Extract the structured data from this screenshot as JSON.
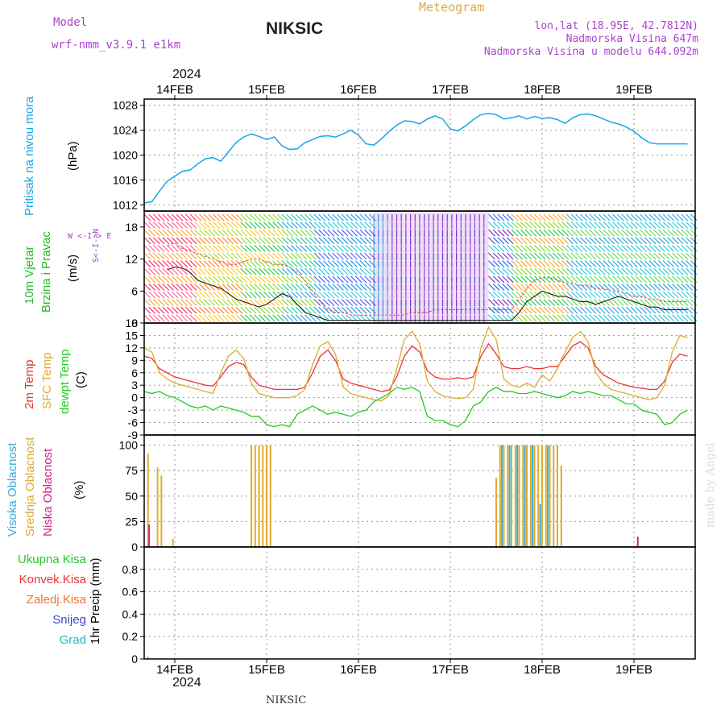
{
  "header": {
    "model_label": "Model",
    "model_name": "wrf-nmm_v3.9.1 e1km",
    "city": "NIKSIC",
    "meteogram_label": "Meteogram",
    "lonlat": "lon,lat (18.95E, 42.7812N)",
    "elevation": "Nadmorska Visina 647m",
    "model_elevation": "Nadmorska Visina u modelu 644.092m",
    "year": "2024",
    "days": [
      "14FEB",
      "15FEB",
      "16FEB",
      "17FEB",
      "18FEB",
      "19FEB"
    ],
    "footer_city": "NIKSIC",
    "credit": "made by Angel"
  },
  "colors": {
    "pressure": "#1aa5e6",
    "wind_label": "#22bb22",
    "temp2m": "#ee3333",
    "sfc": "#ddaa33",
    "dewpt": "#22cc22",
    "cloud_high": "#33aadd",
    "cloud_mid": "#ddaa33",
    "cloud_low": "#cc2288",
    "purple": "#aa44cc"
  },
  "panels": {
    "pressure": {
      "label1": "Pritisak na nivou mora",
      "unit": "(hPa)"
    },
    "wind": {
      "label1": "10m Vjetar",
      "label2": "Brzina i Pravac",
      "unit": "(m/s)",
      "compass": [
        "W",
        "<-",
        "I",
        "->",
        "E"
      ],
      "compass_vert": [
        "S",
        "<-",
        "I",
        "->",
        "N"
      ]
    },
    "temp": {
      "label1": "2m Temp",
      "label2": "SFC Temp",
      "label3": "dewpt Temp",
      "unit": "(C)"
    },
    "cloud": {
      "label1": "Visoka Oblacnost",
      "label2": "Srednja Oblacnost",
      "label3": "Niska Oblacnost",
      "unit": "(%)"
    },
    "precip": {
      "legend": [
        "Ukupna Kisa",
        "Konvek.Kisa",
        "Zaledj.Kisa",
        "Snijeg",
        "Grad"
      ],
      "unit": "1hr Precip (mm)"
    }
  },
  "chart_data": [
    {
      "type": "line",
      "name": "pressure",
      "ylim": [
        1011,
        1029
      ],
      "yticks": [
        "1012",
        "1016",
        "1020",
        "1024",
        "1028"
      ],
      "x": [
        0,
        2,
        4,
        6,
        8,
        10,
        12,
        14,
        16,
        18,
        20,
        22,
        24,
        26,
        28,
        30,
        32,
        34,
        36,
        38,
        40,
        42,
        44,
        46,
        48,
        50,
        52,
        54,
        56,
        58,
        60,
        62,
        64,
        66,
        68,
        70,
        72,
        74,
        76,
        78,
        80,
        82,
        84,
        86,
        88,
        90,
        92,
        94,
        96,
        98,
        100,
        102,
        104,
        106,
        108,
        110,
        112,
        114,
        116,
        118,
        120,
        122,
        124,
        126,
        128,
        130,
        132,
        134,
        136,
        138,
        140,
        142
      ],
      "series": [
        {
          "values": [
            1012.3,
            1012.5,
            1014.2,
            1015.8,
            1016.6,
            1017.4,
            1017.6,
            1018.6,
            1019.4,
            1019.6,
            1019.0,
            1020.5,
            1022.0,
            1022.9,
            1023.4,
            1023.0,
            1022.5,
            1022.9,
            1021.5,
            1020.9,
            1021.0,
            1022.0,
            1022.5,
            1023.0,
            1023.1,
            1022.9,
            1023.4,
            1024.0,
            1023.2,
            1021.8,
            1021.6,
            1022.6,
            1023.8,
            1024.8,
            1025.5,
            1025.4,
            1025.0,
            1025.8,
            1026.3,
            1025.8,
            1024.2,
            1023.9,
            1024.7,
            1025.7,
            1026.5,
            1026.7,
            1026.5,
            1025.8,
            1026.0,
            1026.3,
            1025.8,
            1026.2,
            1025.9,
            1026.0,
            1025.7,
            1025.1,
            1026.0,
            1026.5,
            1026.6,
            1026.3,
            1025.8,
            1025.3,
            1025.0,
            1024.5,
            1023.8,
            1022.8,
            1022.0,
            1021.8,
            1021.8,
            1021.8,
            1021.8,
            1021.8
          ]
        }
      ]
    },
    {
      "type": "line",
      "name": "wind",
      "ylim": [
        0,
        21
      ],
      "yticks": [
        "0",
        "6",
        "12",
        "18"
      ],
      "x": [
        6,
        8,
        10,
        12,
        14,
        16,
        18,
        20,
        22,
        24,
        26,
        28,
        30,
        32,
        34,
        36,
        38,
        40,
        42,
        44,
        46,
        48,
        50,
        52,
        54,
        56,
        58,
        60,
        62,
        64,
        66,
        68,
        70,
        72,
        74,
        76,
        78,
        80,
        82,
        84,
        86,
        88,
        90,
        92,
        94,
        96,
        98,
        100,
        102,
        104,
        106,
        108,
        110,
        112,
        114,
        116,
        118,
        120,
        122,
        124,
        126,
        128,
        130,
        132,
        134,
        136,
        138,
        140,
        142
      ],
      "series": [
        {
          "name": "wind_speed",
          "values": [
            10.0,
            10.5,
            10.3,
            9.5,
            8.0,
            7.5,
            7.0,
            6.5,
            5.5,
            4.5,
            4.0,
            3.5,
            3.0,
            3.5,
            4.5,
            5.5,
            5.0,
            3.5,
            2.0,
            1.5,
            1.0,
            0.5,
            0.5,
            0.5,
            0.5,
            0.5,
            0.5,
            0.5,
            0.5,
            0.5,
            0.5,
            0.5,
            0.5,
            0.5,
            0.5,
            0.5,
            0.5,
            0.5,
            0.5,
            0.5,
            0.5,
            0.5,
            0.5,
            0.5,
            0.5,
            0.5,
            2.0,
            4.0,
            5.0,
            6.0,
            5.5,
            5.0,
            5.0,
            4.5,
            4.0,
            4.0,
            3.5,
            4.0,
            4.5,
            5.0,
            4.5,
            4.0,
            3.5,
            3.0,
            3.0,
            2.5,
            2.5,
            2.5,
            2.5
          ]
        },
        {
          "name": "wind_gust",
          "values": [
            14.5,
            15.0,
            14.0,
            13.5,
            13.0,
            12.5,
            12.0,
            11.5,
            11.0,
            11.0,
            11.5,
            12.0,
            12.0,
            11.5,
            11.0,
            11.0,
            10.5,
            9.5,
            8.0,
            6.0,
            4.0,
            2.5,
            2.0,
            2.0,
            1.5,
            1.5,
            1.5,
            1.5,
            1.5,
            1.5,
            1.5,
            1.5,
            2.0,
            2.0,
            2.0,
            2.5,
            2.5,
            2.5,
            2.5,
            2.5,
            2.5,
            2.5,
            2.5,
            2.5,
            2.5,
            2.5,
            4.5,
            6.5,
            8.0,
            8.5,
            8.5,
            8.0,
            7.5,
            7.5,
            7.0,
            7.0,
            6.5,
            6.5,
            6.0,
            6.0,
            5.5,
            5.0,
            5.0,
            4.5,
            4.5,
            4.0,
            4.0,
            4.0,
            4.0
          ]
        }
      ]
    },
    {
      "type": "line",
      "name": "temperature",
      "ylim": [
        -9,
        18
      ],
      "yticks": [
        "-9",
        "-6",
        "-3",
        "0",
        "3",
        "6",
        "9",
        "12",
        "15",
        "18"
      ],
      "x": [
        0,
        2,
        4,
        6,
        8,
        10,
        12,
        14,
        16,
        18,
        20,
        22,
        24,
        26,
        28,
        30,
        32,
        34,
        36,
        38,
        40,
        42,
        44,
        46,
        48,
        50,
        52,
        54,
        56,
        58,
        60,
        62,
        64,
        66,
        68,
        70,
        72,
        74,
        76,
        78,
        80,
        82,
        84,
        86,
        88,
        90,
        92,
        94,
        96,
        98,
        100,
        102,
        104,
        106,
        108,
        110,
        112,
        114,
        116,
        118,
        120,
        122,
        124,
        126,
        128,
        130,
        132,
        134,
        136,
        138,
        140,
        142
      ],
      "series": [
        {
          "name": "2m_temp",
          "values": [
            10.0,
            9.5,
            7.0,
            6.0,
            5.0,
            4.5,
            4.0,
            3.5,
            3.0,
            2.8,
            5.0,
            7.5,
            8.5,
            8.0,
            5.0,
            3.0,
            2.5,
            2.0,
            2.0,
            2.0,
            2.0,
            2.5,
            6.0,
            10.0,
            11.5,
            9.0,
            4.5,
            3.5,
            3.0,
            2.5,
            2.0,
            1.5,
            1.8,
            5.0,
            10.0,
            12.5,
            11.0,
            6.5,
            5.0,
            4.5,
            4.5,
            4.8,
            4.5,
            5.0,
            10.0,
            13.0,
            10.5,
            7.5,
            7.0,
            7.0,
            7.5,
            7.0,
            7.0,
            7.5,
            7.5,
            10.0,
            12.5,
            13.5,
            12.0,
            7.5,
            5.5,
            4.5,
            3.5,
            3.0,
            2.5,
            2.3,
            2.0,
            2.0,
            4.0,
            8.5,
            10.5,
            10.0
          ]
        },
        {
          "name": "sfc_temp",
          "values": [
            12.0,
            11.0,
            6.0,
            4.5,
            3.5,
            3.0,
            2.5,
            2.0,
            1.5,
            1.0,
            6.0,
            10.0,
            11.5,
            9.5,
            3.5,
            1.0,
            0.5,
            0.0,
            0.0,
            0.0,
            0.5,
            2.0,
            8.0,
            12.5,
            13.5,
            10.5,
            2.5,
            1.0,
            0.5,
            0.0,
            -0.5,
            -0.8,
            0.5,
            7.0,
            14.0,
            16.0,
            13.0,
            4.0,
            1.5,
            0.5,
            0.0,
            -0.2,
            0.0,
            2.0,
            12.0,
            17.0,
            14.0,
            4.5,
            3.0,
            2.5,
            3.5,
            2.5,
            5.5,
            4.0,
            7.0,
            11.0,
            14.5,
            16.0,
            13.5,
            6.0,
            3.5,
            2.0,
            1.5,
            1.0,
            0.5,
            0.0,
            -0.5,
            0.0,
            3.0,
            11.0,
            15.0,
            14.5
          ]
        },
        {
          "name": "dewpt_temp",
          "values": [
            1.5,
            1.0,
            1.5,
            0.5,
            0.0,
            -1.0,
            -2.0,
            -2.5,
            -2.0,
            -3.0,
            -2.0,
            -2.5,
            -3.0,
            -3.5,
            -4.5,
            -4.5,
            -6.5,
            -7.0,
            -6.5,
            -7.0,
            -4.0,
            -3.0,
            -2.0,
            -3.0,
            -4.0,
            -3.5,
            -4.0,
            -4.5,
            -3.5,
            -3.0,
            -1.0,
            0.0,
            1.0,
            2.5,
            2.0,
            2.5,
            1.5,
            -4.5,
            -5.5,
            -5.5,
            -6.5,
            -7.0,
            -5.5,
            -2.0,
            -1.0,
            1.5,
            2.5,
            1.5,
            1.5,
            1.0,
            1.0,
            1.5,
            1.0,
            0.5,
            0.0,
            0.5,
            1.5,
            1.0,
            1.5,
            1.0,
            0.5,
            0.5,
            -0.5,
            -1.5,
            -1.5,
            -3.0,
            -3.5,
            -4.0,
            -6.5,
            -6.0,
            -4.0,
            -3.0
          ]
        }
      ]
    },
    {
      "type": "bar",
      "name": "cloud_cover",
      "ylim": [
        0,
        110
      ],
      "yticks": [
        "0",
        "25",
        "50",
        "75",
        "100"
      ],
      "series": [
        {
          "name": "mid",
          "x": [
            1,
            3.5,
            4.5,
            7.5,
            28,
            29,
            30,
            31,
            32,
            33,
            92,
            93,
            94,
            95,
            96,
            97,
            98,
            99,
            100,
            101,
            102,
            103,
            104,
            105,
            106,
            107,
            108,
            109
          ],
          "values": [
            92,
            78,
            70,
            8,
            100,
            100,
            100,
            100,
            100,
            100,
            68,
            100,
            100,
            100,
            100,
            100,
            100,
            100,
            100,
            100,
            100,
            100,
            100,
            100,
            100,
            100,
            100,
            80
          ]
        },
        {
          "name": "high",
          "x": [
            93.5,
            95.5,
            97.5,
            99.5,
            101.5,
            103.5,
            105.5
          ],
          "values": [
            100,
            100,
            100,
            100,
            100,
            42,
            100
          ]
        },
        {
          "name": "low",
          "x": [
            1.3,
            129
          ],
          "values": [
            22,
            10
          ]
        }
      ]
    },
    {
      "type": "bar",
      "name": "precipitation",
      "ylim": [
        0,
        1
      ],
      "yticks": [
        "0",
        "0.2",
        "0.4",
        "0.6",
        "0.8"
      ],
      "series": [
        {
          "name": "total",
          "x": [],
          "values": []
        }
      ]
    }
  ]
}
